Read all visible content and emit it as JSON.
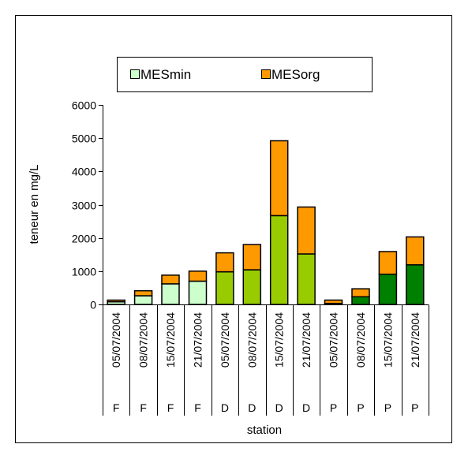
{
  "chart_data": {
    "type": "bar",
    "stacked": true,
    "title": "",
    "xlabel": "station",
    "ylabel": "teneur en mg/L",
    "ylim": [
      0,
      6000
    ],
    "yticks": [
      0,
      1000,
      2000,
      3000,
      4000,
      5000,
      6000
    ],
    "categories": [
      "05/07/2004",
      "08/07/2004",
      "15/07/2004",
      "21/07/2004",
      "05/07/2004",
      "08/07/2004",
      "15/07/2004",
      "21/07/2004",
      "05/07/2004",
      "08/07/2004",
      "15/07/2004",
      "21/07/2004"
    ],
    "groups": [
      "F",
      "F",
      "F",
      "F",
      "D",
      "D",
      "D",
      "D",
      "P",
      "P",
      "P",
      "P"
    ],
    "legend_position": "top",
    "series": [
      {
        "name": "MESmin",
        "legend_color": "#ccffcc",
        "values": [
          80,
          260,
          620,
          700,
          980,
          1040,
          2670,
          1520,
          30,
          230,
          910,
          1190
        ],
        "colors": [
          "#ccffcc",
          "#ccffcc",
          "#ccffcc",
          "#ccffcc",
          "#99cc00",
          "#99cc00",
          "#99cc00",
          "#99cc00",
          "#008000",
          "#008000",
          "#008000",
          "#008000"
        ]
      },
      {
        "name": "MESorg",
        "legend_color": "#ff9900",
        "values": [
          50,
          150,
          260,
          300,
          570,
          760,
          2250,
          1410,
          100,
          240,
          680,
          840
        ],
        "colors": [
          "#ff9900",
          "#ff9900",
          "#ff9900",
          "#ff9900",
          "#ff9900",
          "#ff9900",
          "#ff9900",
          "#ff9900",
          "#ff9900",
          "#ff9900",
          "#ff9900",
          "#ff9900"
        ]
      }
    ]
  }
}
